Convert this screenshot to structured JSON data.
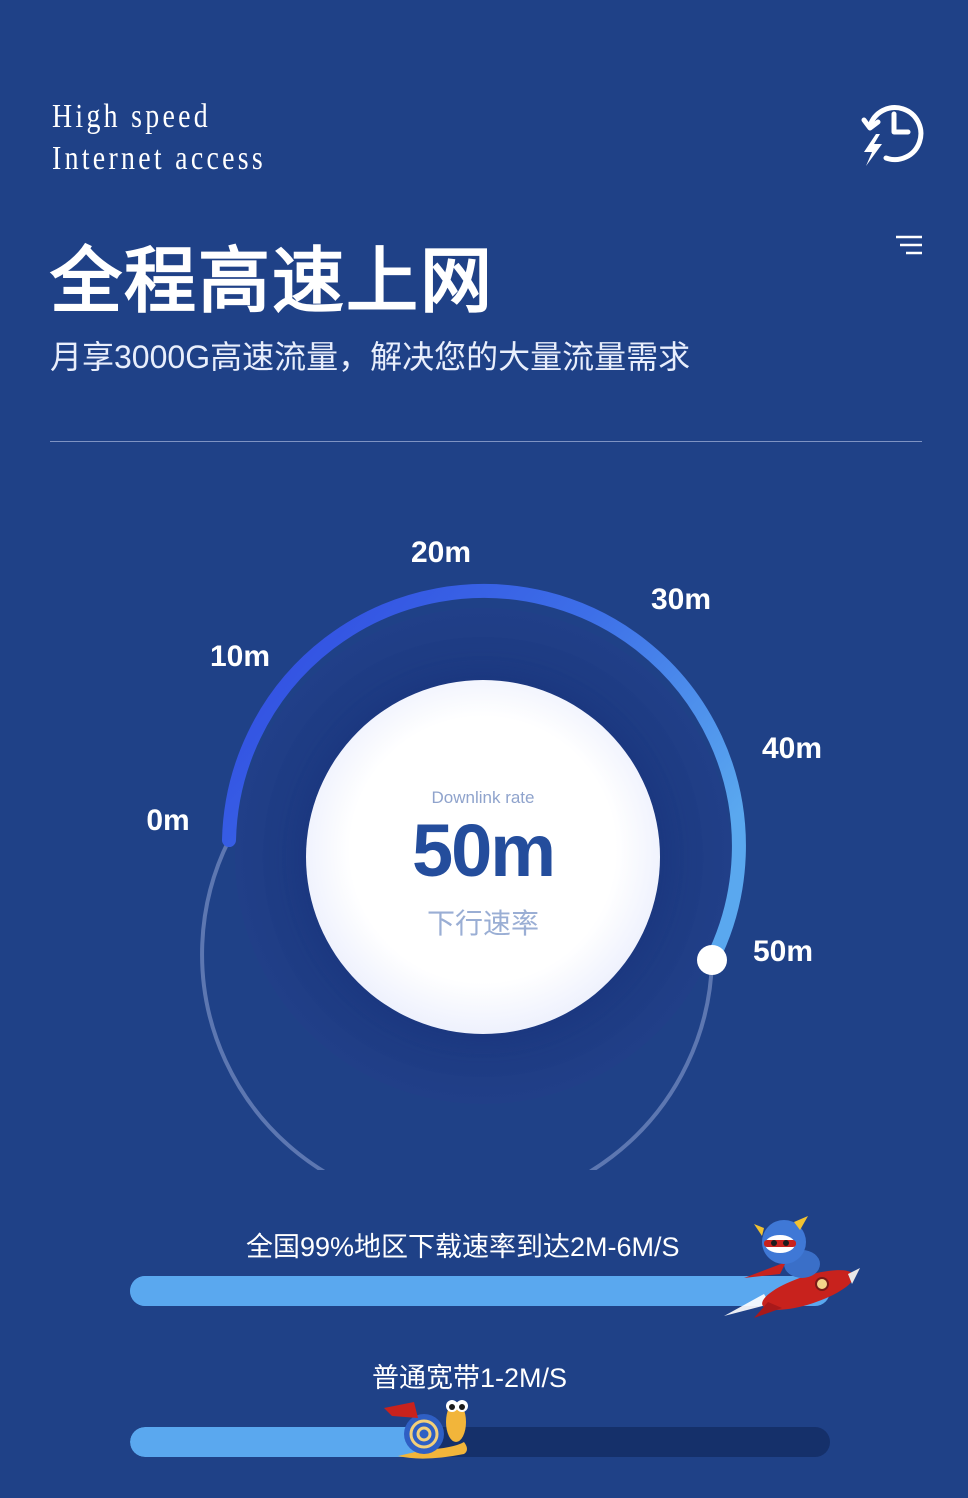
{
  "header": {
    "tagline_line1": "High speed",
    "tagline_line2": "Internet access",
    "history_icon": "history-lightning-icon",
    "menu_icon": "menu-icon"
  },
  "hero": {
    "title": "全程高速上网",
    "subtitle": "月享3000G高速流量，解决您的大量流量需求"
  },
  "gauge": {
    "ticks": [
      "0m",
      "10m",
      "20m",
      "30m",
      "40m",
      "50m"
    ],
    "caption": "Downlink rate",
    "value": "50m",
    "label": "下行速率",
    "level_fraction": 1.0,
    "colors": {
      "arc_start": "#2f47e0",
      "arc_end": "#5aa8ef",
      "track": "#5d77b1"
    }
  },
  "comparison": {
    "fast": {
      "label": "全国99%地区下载速率到达2M-6M/S",
      "fill_fraction": 0.92,
      "icon": "rocket-hero-icon"
    },
    "slow": {
      "label": "普通宽带1-2M/S",
      "fill_fraction": 0.42,
      "icon": "snail-icon"
    },
    "colors": {
      "fill": "#5aa8ef",
      "track_fast": "#5aa8ef",
      "track_slow": "#15306a"
    }
  }
}
